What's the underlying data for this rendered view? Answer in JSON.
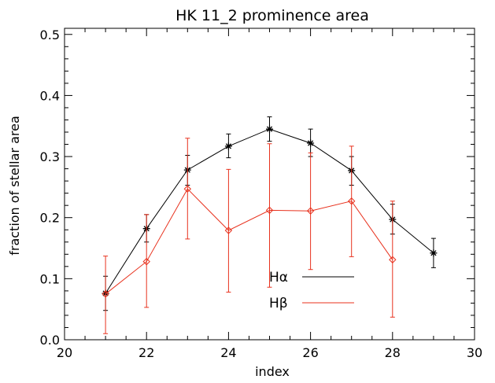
{
  "chart_data": {
    "type": "line",
    "title": "HK 11_2 prominence area",
    "xlabel": "index",
    "ylabel": "fraction of stellar area",
    "xlim": [
      20,
      30
    ],
    "ylim": [
      0,
      0.51
    ],
    "x_ticks": [
      20,
      22,
      24,
      26,
      28,
      30
    ],
    "y_ticks": [
      0.0,
      0.1,
      0.2,
      0.3,
      0.4,
      0.5
    ],
    "y_tick_labels": [
      "0.0",
      "0.1",
      "0.2",
      "0.3",
      "0.4",
      "0.5"
    ],
    "grid": false,
    "legend_position": "bottom-center",
    "series": [
      {
        "name": "Hα",
        "color": "#000000",
        "marker": "asterisk",
        "x": [
          21,
          22,
          23,
          24,
          25,
          26,
          27,
          28,
          29
        ],
        "y": [
          0.076,
          0.182,
          0.278,
          0.317,
          0.345,
          0.322,
          0.277,
          0.197,
          0.142
        ],
        "err_low": [
          0.048,
          0.16,
          0.253,
          0.298,
          0.325,
          0.3,
          0.253,
          0.173,
          0.118
        ],
        "err_high": [
          0.104,
          0.205,
          0.302,
          0.337,
          0.365,
          0.345,
          0.3,
          0.222,
          0.166
        ]
      },
      {
        "name": "Hβ",
        "color": "#e8321e",
        "marker": "diamond",
        "x": [
          21,
          22,
          23,
          24,
          25,
          26,
          27,
          28
        ],
        "y": [
          0.075,
          0.128,
          0.247,
          0.179,
          0.212,
          0.211,
          0.227,
          0.131
        ],
        "err_low": [
          0.01,
          0.053,
          0.165,
          0.078,
          0.086,
          0.115,
          0.136,
          0.037
        ],
        "err_high": [
          0.137,
          0.205,
          0.33,
          0.279,
          0.321,
          0.306,
          0.317,
          0.227
        ]
      }
    ]
  }
}
